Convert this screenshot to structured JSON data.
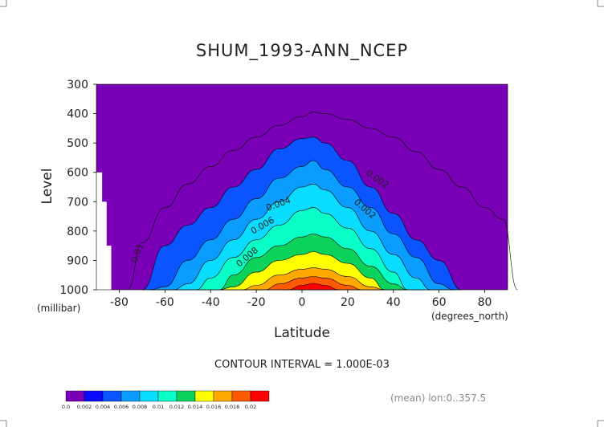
{
  "chart_data": {
    "type": "heatmap",
    "title": "SHUM_1993-ANN_NCEP",
    "xlabel": "Latitude",
    "ylabel": "Level",
    "x_unit": "(degrees_north)",
    "y_unit": "(millibar)",
    "xlim": [
      -90,
      90
    ],
    "ylim": [
      1000,
      300
    ],
    "x_ticks": [
      "-80",
      "-60",
      "-40",
      "-20",
      "0",
      "20",
      "40",
      "60",
      "80"
    ],
    "y_ticks": [
      "300",
      "400",
      "500",
      "600",
      "700",
      "800",
      "900",
      "1000"
    ],
    "contour_interval_text": "CONTOUR INTERVAL = 1.000E-03",
    "note": "(mean) lon:0..357.5",
    "levels": [
      0.0,
      0.002,
      0.004,
      0.006,
      0.008,
      0.01,
      0.012,
      0.014,
      0.016,
      0.018,
      0.02
    ],
    "legend_labels": [
      "0.0",
      "0.002",
      "0.004",
      "0.006",
      "0.008",
      "0.01",
      "0.012",
      "0.014",
      "0.016",
      "0.018",
      "0.02"
    ],
    "colors": [
      "#7a00b8",
      "#0a0aff",
      "#0a55ff",
      "#0a9cff",
      "#0adcff",
      "#0affc8",
      "#0ad25a",
      "#ffff00",
      "#ffa800",
      "#ff5a00",
      "#ff0000"
    ],
    "contour_labels": [
      "0.002",
      "0.004",
      "0.006",
      "0.008",
      "0.01",
      "0.002"
    ],
    "boundaries_lat": [
      -88,
      -80,
      -70,
      -60,
      -50,
      -40,
      -30,
      -20,
      -10,
      0,
      5,
      10,
      20,
      30,
      40,
      50,
      60,
      70,
      80,
      88
    ],
    "boundaries": [
      [
        null,
        null,
        840,
        720,
        640,
        580,
        525,
        480,
        440,
        410,
        395,
        400,
        420,
        450,
        480,
        530,
        590,
        650,
        720,
        760
      ],
      [
        null,
        null,
        1000,
        850,
        780,
        720,
        650,
        590,
        520,
        485,
        480,
        500,
        560,
        650,
        740,
        830,
        900,
        1000,
        null,
        null
      ],
      [
        null,
        null,
        null,
        990,
        900,
        830,
        760,
        690,
        620,
        580,
        560,
        590,
        650,
        720,
        810,
        890,
        980,
        null,
        null,
        null
      ],
      [
        null,
        null,
        null,
        null,
        980,
        900,
        830,
        760,
        700,
        650,
        640,
        660,
        720,
        800,
        880,
        960,
        null,
        null,
        null,
        null
      ],
      [
        null,
        null,
        null,
        null,
        null,
        960,
        890,
        830,
        780,
        730,
        720,
        740,
        790,
        860,
        940,
        null,
        null,
        null,
        null,
        null
      ],
      [
        null,
        null,
        null,
        null,
        null,
        null,
        950,
        890,
        850,
        820,
        810,
        820,
        860,
        920,
        980,
        null,
        null,
        null,
        null,
        null
      ],
      [
        null,
        null,
        null,
        null,
        null,
        null,
        990,
        940,
        900,
        880,
        870,
        880,
        910,
        960,
        null,
        null,
        null,
        null,
        null,
        null
      ],
      [
        null,
        null,
        null,
        null,
        null,
        null,
        null,
        985,
        950,
        930,
        925,
        930,
        955,
        990,
        null,
        null,
        null,
        null,
        null,
        null
      ],
      [
        null,
        null,
        null,
        null,
        null,
        null,
        null,
        null,
        980,
        960,
        955,
        960,
        985,
        null,
        null,
        null,
        null,
        null,
        null,
        null
      ],
      [
        null,
        null,
        null,
        null,
        null,
        null,
        null,
        null,
        null,
        985,
        978,
        985,
        null,
        null,
        null,
        null,
        null,
        null,
        null,
        null
      ]
    ],
    "missing_region": "terrain below surface near -90 to -80 latitude",
    "grid": false,
    "legend_placement": "bottom-left"
  }
}
